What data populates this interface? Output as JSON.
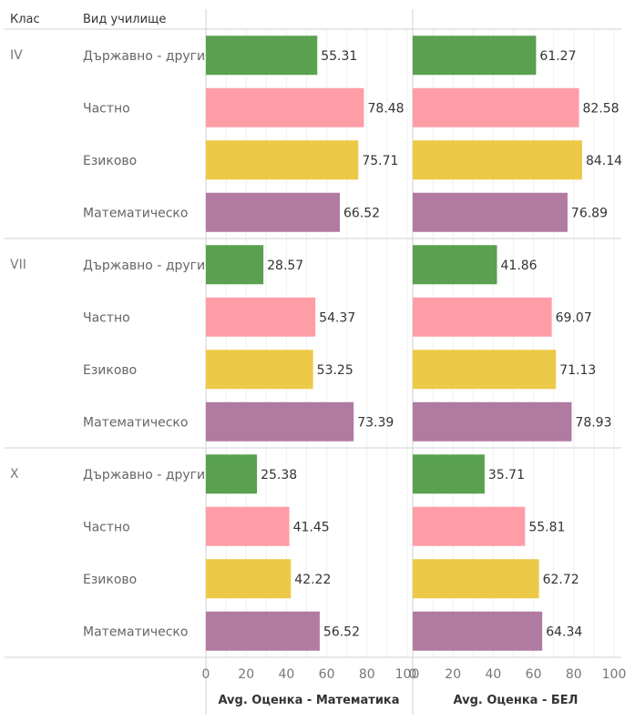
{
  "header": {
    "class_label": "Клас",
    "school_label": "Вид училище"
  },
  "chart_data": {
    "type": "bar",
    "orientation": "horizontal",
    "groups": [
      "IV",
      "VII",
      "X"
    ],
    "categories": [
      "Държавно - други",
      "Частно",
      "Езиково",
      "Математическо"
    ],
    "colors": {
      "Държавно - други": "#59a14f",
      "Частно": "#ff9da7",
      "Езиково": "#edc948",
      "Математическо": "#b07aa1"
    },
    "xlim": [
      0,
      100
    ],
    "ticks": [
      "0",
      "20",
      "40",
      "60",
      "80",
      "100"
    ],
    "panels": [
      {
        "measure": "Avg. Оценка - Математика",
        "values": [
          [
            55.31,
            78.48,
            75.71,
            66.52
          ],
          [
            28.57,
            54.37,
            53.25,
            73.39
          ],
          [
            25.38,
            41.45,
            42.22,
            56.52
          ]
        ]
      },
      {
        "measure": "Avg. Оценка - БЕЛ",
        "values": [
          [
            61.27,
            82.58,
            84.14,
            76.89
          ],
          [
            41.86,
            69.07,
            71.13,
            78.93
          ],
          [
            35.71,
            55.81,
            62.72,
            64.34
          ]
        ]
      }
    ]
  }
}
